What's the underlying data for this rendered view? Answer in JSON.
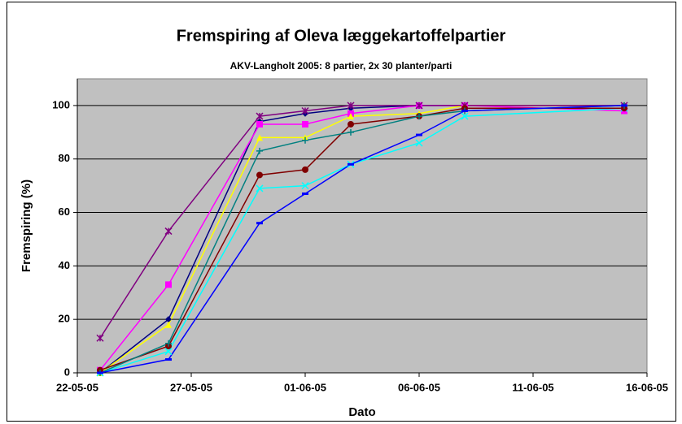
{
  "chart_data": {
    "type": "line",
    "title": "Fremspiring af Oleva læggekartoffelpartier",
    "subtitle": "AKV-Langholt 2005: 8 partier, 2x 30 planter/parti",
    "xlabel": "Dato",
    "ylabel": "Fremspiring (%)",
    "x": [
      "23-05-05",
      "26-05-05",
      "30-05-05",
      "01-06-05",
      "03-06-05",
      "06-06-05",
      "08-06-05",
      "15-06-05"
    ],
    "xlim": [
      "22-05-05",
      "16-06-05"
    ],
    "xticks": [
      "22-05-05",
      "27-05-05",
      "01-06-05",
      "06-06-05",
      "11-06-05",
      "16-06-05"
    ],
    "ylim": [
      0,
      110
    ],
    "yticks": [
      0,
      20,
      40,
      60,
      80,
      100
    ],
    "grid": true,
    "series": [
      {
        "color": "#000080",
        "marker": "diamond",
        "values": [
          0,
          20,
          94,
          97,
          99,
          100,
          100,
          100
        ]
      },
      {
        "color": "#ff00ff",
        "marker": "square",
        "values": [
          1,
          33,
          93,
          93,
          97,
          100,
          100,
          98
        ]
      },
      {
        "color": "#ffff00",
        "marker": "triangle",
        "values": [
          0,
          18,
          88,
          88,
          96,
          97,
          100,
          100
        ]
      },
      {
        "color": "#00ffff",
        "marker": "cross",
        "values": [
          0,
          8,
          69,
          70,
          78,
          86,
          96,
          99
        ]
      },
      {
        "color": "#800080",
        "marker": "star",
        "values": [
          13,
          53,
          96,
          98,
          100,
          100,
          100,
          100
        ]
      },
      {
        "color": "#800000",
        "marker": "circle",
        "values": [
          1,
          10,
          74,
          76,
          93,
          96,
          99,
          99
        ]
      },
      {
        "color": "#008080",
        "marker": "plus",
        "values": [
          0,
          11,
          83,
          87,
          90,
          96,
          98,
          100
        ]
      },
      {
        "color": "#0000ff",
        "marker": "dash",
        "values": [
          0,
          5,
          56,
          67,
          78,
          89,
          98,
          100
        ]
      }
    ]
  }
}
